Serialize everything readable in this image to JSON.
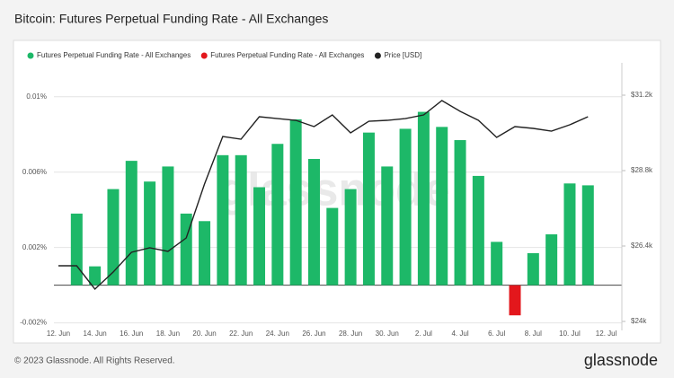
{
  "chart_data": {
    "type": "bar+line",
    "title": "Bitcoin: Futures Perpetual Funding Rate - All Exchanges",
    "watermark": "glassnode",
    "footer": "© 2023 Glassnode. All Rights Reserved.",
    "logo": "glassnode",
    "categories": [
      "12. Jun",
      null,
      "14. Jun",
      null,
      "16. Jun",
      null,
      "18. Jun",
      null,
      "20. Jun",
      null,
      "22. Jun",
      null,
      "24. Jun",
      null,
      "26. Jun",
      null,
      "28. Jun",
      null,
      "30. Jun",
      null,
      "2. Jul",
      null,
      "4. Jul",
      null,
      "6. Jul",
      null,
      "8. Jul",
      null,
      "10. Jul",
      null,
      "12. Jul"
    ],
    "series": [
      {
        "name": "Futures Perpetual Funding Rate - All Exchanges",
        "color": "#1db868",
        "kind": "bar",
        "values": [
          null,
          0.0038,
          0.001,
          0.0051,
          0.0066,
          0.0055,
          0.0063,
          0.0038,
          0.0034,
          0.0069,
          0.0069,
          0.0052,
          0.0075,
          0.0088,
          0.0067,
          0.0041,
          0.0051,
          0.0081,
          0.0063,
          0.0083,
          0.0092,
          0.0084,
          0.0077,
          0.0058,
          0.0023,
          null,
          0.0017,
          0.0027,
          0.0054,
          0.0053,
          null
        ]
      },
      {
        "name": "Futures Perpetual Funding Rate - All Exchanges",
        "color": "#e3171c",
        "kind": "bar",
        "values": [
          null,
          null,
          null,
          null,
          null,
          null,
          null,
          null,
          null,
          null,
          null,
          null,
          null,
          null,
          null,
          null,
          null,
          null,
          null,
          null,
          null,
          null,
          null,
          null,
          null,
          -0.0016,
          null,
          null,
          null,
          null,
          null
        ]
      },
      {
        "name": "Price [USD]",
        "color": "#222222",
        "kind": "line",
        "axis": "y2",
        "values": [
          25771,
          25771,
          25029,
          25571,
          26200,
          26343,
          26229,
          26657,
          28371,
          29886,
          29800,
          30514,
          30457,
          30400,
          30200,
          30571,
          30000,
          30371,
          30400,
          30457,
          30571,
          31029,
          30686,
          30400,
          29857,
          30200,
          30143,
          30057,
          30257,
          30514,
          null
        ]
      }
    ],
    "ylim": [
      -0.0024,
      0.0118
    ],
    "yticks": [
      {
        "value": -0.002,
        "label": "-0.002%"
      },
      {
        "value": 0.002,
        "label": "0.002%"
      },
      {
        "value": 0.006,
        "label": "0.006%"
      },
      {
        "value": 0.01,
        "label": "0.01%"
      }
    ],
    "y2lim": [
      23714,
      32229
    ],
    "y2ticks": [
      {
        "value": 24000,
        "label": "$24k"
      },
      {
        "value": 26400,
        "label": "$26.4k"
      },
      {
        "value": 28800,
        "label": "$28.8k"
      },
      {
        "value": 31200,
        "label": "$31.2k"
      }
    ],
    "grid": true
  }
}
